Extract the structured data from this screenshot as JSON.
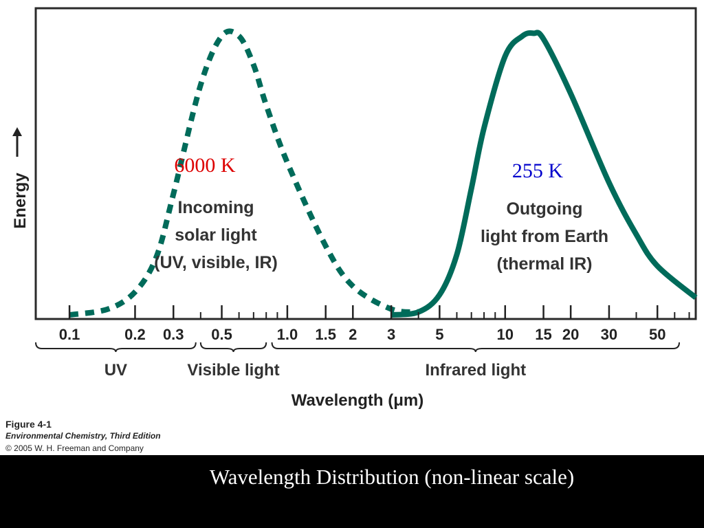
{
  "chart_data": {
    "type": "line",
    "title": "",
    "xlabel": "Wavelength (μm)",
    "ylabel": "Energy",
    "x_scale": "non-linear (logarithmic)",
    "xlim": [
      0.07,
      75
    ],
    "x_ticks": [
      0.1,
      0.2,
      0.3,
      0.5,
      1.0,
      1.5,
      2,
      3,
      5,
      10,
      15,
      20,
      30,
      50
    ],
    "x_tick_labels": [
      "0.1",
      "0.2",
      "0.3",
      "0.5",
      "1.0",
      "1.5",
      "2",
      "3",
      "5",
      "10",
      "15",
      "20",
      "30",
      "50"
    ],
    "minor_ticks": [
      0.4,
      0.6,
      0.7,
      0.8,
      0.9,
      4,
      6,
      7,
      8,
      9,
      40,
      60,
      70
    ],
    "grid": false,
    "regions": [
      {
        "label": "UV",
        "from": 0.07,
        "to": 0.38
      },
      {
        "label": "Visible light",
        "from": 0.4,
        "to": 0.8
      },
      {
        "label": "Infrared light",
        "from": 0.85,
        "to": 75
      }
    ],
    "series": [
      {
        "name": "6000 K",
        "label_color": "#dd0000",
        "line_style": "dashed",
        "color": "#006b5a",
        "annotation": [
          "Incoming",
          "solar light",
          "(UV, visible, IR)"
        ],
        "x": [
          0.1,
          0.15,
          0.2,
          0.25,
          0.3,
          0.4,
          0.5,
          0.6,
          0.7,
          0.8,
          1.0,
          1.5,
          2,
          3,
          4
        ],
        "y": [
          0.0,
          0.02,
          0.08,
          0.2,
          0.42,
          0.8,
          0.97,
          0.97,
          0.87,
          0.73,
          0.53,
          0.24,
          0.1,
          0.02,
          0.01
        ]
      },
      {
        "name": "255 K",
        "label_color": "#0000cc",
        "line_style": "solid",
        "color": "#006b5a",
        "annotation": [
          "Outgoing",
          "light from Earth",
          "(thermal IR)"
        ],
        "x": [
          3,
          4,
          5,
          6,
          7,
          8,
          10,
          12,
          13.5,
          15,
          20,
          30,
          40,
          50,
          75
        ],
        "y": [
          0.0,
          0.01,
          0.07,
          0.21,
          0.44,
          0.65,
          0.9,
          0.97,
          0.98,
          0.96,
          0.77,
          0.46,
          0.28,
          0.17,
          0.06
        ]
      }
    ]
  },
  "figure_info": {
    "number": "Figure 4-1",
    "book": "Environmental Chemistry, Third Edition",
    "copyright": "© 2005 W. H. Freeman and Company"
  },
  "slide": {
    "caption": "Wavelength Distribution (non-linear scale)"
  }
}
